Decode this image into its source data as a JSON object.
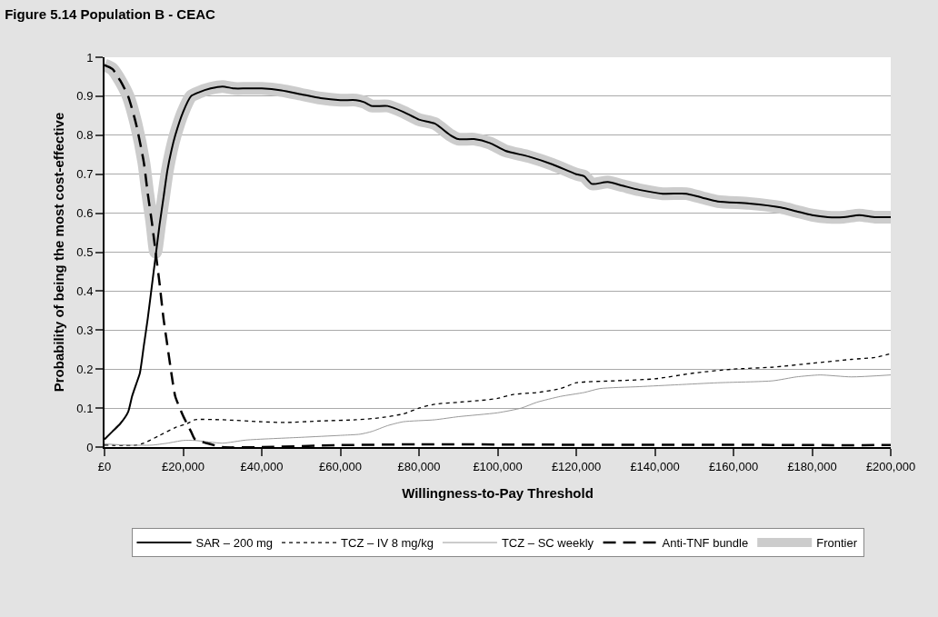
{
  "chart_data": {
    "type": "line",
    "title": "Figure 5.14 Population B - CEAC",
    "xlabel": "Willingness-to-Pay Threshold",
    "ylabel": "Probability of being the most cost-effective",
    "xlim": [
      0,
      200000
    ],
    "xticks": [
      {
        "value": 0,
        "label": "£0"
      },
      {
        "value": 20000,
        "label": "£20,000"
      },
      {
        "value": 40000,
        "label": "£40,000"
      },
      {
        "value": 60000,
        "label": "£60,000"
      },
      {
        "value": 80000,
        "label": "£80,000"
      },
      {
        "value": 100000,
        "label": "£100,000"
      },
      {
        "value": 120000,
        "label": "£120,000"
      },
      {
        "value": 140000,
        "label": "£140,000"
      },
      {
        "value": 160000,
        "label": "£160,000"
      },
      {
        "value": 180000,
        "label": "£180,000"
      },
      {
        "value": 200000,
        "label": "£200,000"
      }
    ],
    "ylim": [
      0,
      1
    ],
    "yticks": [
      0,
      0.1,
      0.2,
      0.3,
      0.4,
      0.5,
      0.6,
      0.7,
      0.8,
      0.9,
      1
    ],
    "grid": "y",
    "legend": "bottom",
    "marker": "none",
    "series": [
      {
        "name": "Frontier",
        "color": "#cccccc",
        "line_style": "solid",
        "x": [
          0,
          2000,
          4000,
          6000,
          8000,
          10000,
          11000,
          12000,
          13000,
          14000,
          15000,
          16000,
          17000,
          18000,
          20000,
          22000,
          24000,
          27000,
          30000,
          33000,
          36000,
          40000,
          45000,
          50000,
          55000,
          60000,
          64000,
          66000,
          68000,
          72000,
          76000,
          80000,
          84000,
          88000,
          90000,
          94000,
          98000,
          102000,
          108000,
          114000,
          120000,
          122000,
          124000,
          128000,
          132000,
          136000,
          142000,
          148000,
          152000,
          156000,
          164000,
          172000,
          176000,
          180000,
          184000,
          188000,
          192000,
          196000,
          200000
        ],
        "values": [
          0.98,
          0.97,
          0.94,
          0.9,
          0.83,
          0.73,
          0.65,
          0.58,
          0.5,
          0.57,
          0.64,
          0.71,
          0.76,
          0.8,
          0.86,
          0.9,
          0.91,
          0.92,
          0.925,
          0.92,
          0.92,
          0.92,
          0.915,
          0.905,
          0.895,
          0.89,
          0.89,
          0.885,
          0.875,
          0.875,
          0.86,
          0.84,
          0.83,
          0.8,
          0.79,
          0.79,
          0.78,
          0.76,
          0.745,
          0.725,
          0.7,
          0.695,
          0.675,
          0.68,
          0.67,
          0.66,
          0.65,
          0.65,
          0.64,
          0.63,
          0.625,
          0.615,
          0.605,
          0.595,
          0.59,
          0.59,
          0.595,
          0.59,
          0.59
        ]
      },
      {
        "name": "SAR – 200 mg",
        "color": "#000000",
        "line_style": "solid",
        "x": [
          0,
          2000,
          4000,
          6000,
          7000,
          8000,
          9000,
          10000,
          11000,
          12000,
          13000,
          14000,
          15000,
          16000,
          17000,
          18000,
          20000,
          22000,
          24000,
          27000,
          30000,
          33000,
          36000,
          40000,
          45000,
          50000,
          55000,
          60000,
          64000,
          66000,
          68000,
          72000,
          76000,
          80000,
          84000,
          88000,
          90000,
          94000,
          98000,
          102000,
          108000,
          114000,
          120000,
          122000,
          124000,
          128000,
          132000,
          136000,
          142000,
          148000,
          152000,
          156000,
          164000,
          172000,
          176000,
          180000,
          184000,
          188000,
          192000,
          196000,
          200000
        ],
        "values": [
          0.02,
          0.04,
          0.06,
          0.09,
          0.13,
          0.16,
          0.19,
          0.26,
          0.33,
          0.41,
          0.49,
          0.57,
          0.64,
          0.71,
          0.76,
          0.8,
          0.86,
          0.9,
          0.91,
          0.92,
          0.925,
          0.92,
          0.92,
          0.92,
          0.915,
          0.905,
          0.895,
          0.89,
          0.89,
          0.885,
          0.875,
          0.875,
          0.86,
          0.84,
          0.83,
          0.8,
          0.79,
          0.79,
          0.78,
          0.76,
          0.745,
          0.725,
          0.7,
          0.695,
          0.675,
          0.68,
          0.67,
          0.66,
          0.65,
          0.65,
          0.64,
          0.63,
          0.625,
          0.615,
          0.605,
          0.595,
          0.59,
          0.59,
          0.595,
          0.59,
          0.59
        ]
      },
      {
        "name": "TCZ – IV 8 mg/kg",
        "color": "#000000",
        "line_style": "dashed",
        "x": [
          0,
          8000,
          10000,
          14000,
          18000,
          21000,
          23000,
          30000,
          40000,
          46000,
          55000,
          64000,
          70000,
          76000,
          80000,
          84000,
          90000,
          96000,
          100000,
          104000,
          110000,
          116000,
          120000,
          130000,
          140000,
          150000,
          160000,
          170000,
          180000,
          190000,
          196000,
          200000
        ],
        "values": [
          0.005,
          0.005,
          0.01,
          0.03,
          0.05,
          0.06,
          0.07,
          0.07,
          0.065,
          0.063,
          0.067,
          0.07,
          0.075,
          0.085,
          0.1,
          0.11,
          0.115,
          0.12,
          0.125,
          0.135,
          0.14,
          0.15,
          0.165,
          0.17,
          0.175,
          0.19,
          0.2,
          0.205,
          0.215,
          0.225,
          0.23,
          0.24
        ]
      },
      {
        "name": "TCZ – SC weekly",
        "color": "#999999",
        "line_style": "solid",
        "x": [
          0,
          6000,
          12000,
          16000,
          20000,
          23000,
          30000,
          36000,
          50000,
          60000,
          65000,
          68000,
          72000,
          76000,
          84000,
          90000,
          100000,
          106000,
          110000,
          116000,
          122000,
          126000,
          136000,
          146000,
          156000,
          170000,
          176000,
          182000,
          190000,
          200000
        ],
        "values": [
          0.008,
          0.005,
          0.005,
          0.01,
          0.017,
          0.017,
          0.01,
          0.018,
          0.025,
          0.03,
          0.033,
          0.04,
          0.055,
          0.065,
          0.07,
          0.078,
          0.088,
          0.1,
          0.115,
          0.13,
          0.14,
          0.15,
          0.155,
          0.16,
          0.165,
          0.17,
          0.18,
          0.185,
          0.18,
          0.185
        ]
      },
      {
        "name": "Anti-TNF bundle",
        "color": "#000000",
        "line_style": "dashed",
        "x": [
          0,
          2000,
          4000,
          6000,
          8000,
          10000,
          11000,
          12000,
          13000,
          14000,
          15000,
          16000,
          17000,
          18000,
          20000,
          22000,
          23000,
          26000,
          30000,
          40000,
          60000,
          80000,
          120000,
          160000,
          180000,
          200000
        ],
        "values": [
          0.98,
          0.97,
          0.94,
          0.9,
          0.83,
          0.73,
          0.65,
          0.58,
          0.5,
          0.42,
          0.33,
          0.26,
          0.19,
          0.13,
          0.08,
          0.04,
          0.02,
          0.01,
          0.0,
          0.0,
          0.005,
          0.007,
          0.006,
          0.006,
          0.005,
          0.005
        ]
      }
    ]
  }
}
